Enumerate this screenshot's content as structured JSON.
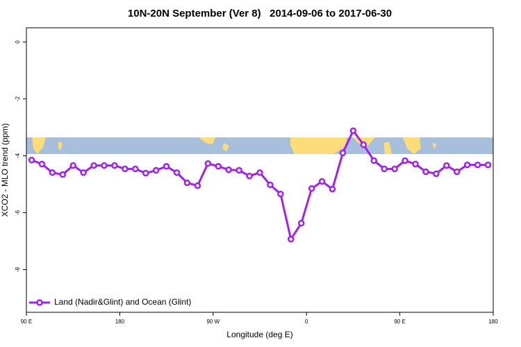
{
  "chart_data": {
    "type": "line",
    "title": "10N-20N September (Ver 8)   2014-09-06 to 2017-06-30",
    "xlabel": "Longitude (deg E)",
    "ylabel": "XCO2 - MLO trend (ppm)",
    "x": [
      95,
      105,
      115,
      125,
      135,
      145,
      155,
      165,
      175,
      185,
      195,
      205,
      215,
      225,
      235,
      245,
      255,
      265,
      275,
      285,
      295,
      305,
      315,
      325,
      335,
      345,
      355,
      365,
      375,
      385,
      395,
      405,
      415,
      425,
      435,
      445,
      455,
      465,
      475,
      485,
      495,
      505,
      515,
      525,
      535
    ],
    "series": [
      {
        "name": "Land (Nadir&Glint) and Ocean (Glint)",
        "color": "#a020f0",
        "values": [
          -4.15,
          -4.29,
          -4.59,
          -4.66,
          -4.34,
          -4.59,
          -4.34,
          -4.34,
          -4.34,
          -4.46,
          -4.46,
          -4.61,
          -4.51,
          -4.37,
          -4.59,
          -4.95,
          -5.05,
          -4.27,
          -4.37,
          -4.49,
          -4.51,
          -4.71,
          -4.59,
          -5.02,
          -5.34,
          -6.93,
          -6.37,
          -5.15,
          -4.9,
          -5.17,
          -3.9,
          -3.12,
          -3.61,
          -4.17,
          -4.46,
          -4.46,
          -4.17,
          -4.29,
          -4.56,
          -4.63,
          -4.34,
          -4.56,
          -4.32,
          -4.32,
          -4.32
        ]
      }
    ],
    "xlim": [
      90,
      540
    ],
    "xticks": [
      {
        "value": 90,
        "label": "90 E"
      },
      {
        "value": 180,
        "label": "180"
      },
      {
        "value": 270,
        "label": "90 W"
      },
      {
        "value": 360,
        "label": "0"
      },
      {
        "value": 450,
        "label": "90 E"
      },
      {
        "value": 540,
        "label": "180"
      }
    ],
    "ylim": [
      -9.5,
      0.5
    ],
    "yticks": [
      0,
      -2,
      -4,
      -6,
      -8
    ],
    "legend": "bottom-left"
  }
}
